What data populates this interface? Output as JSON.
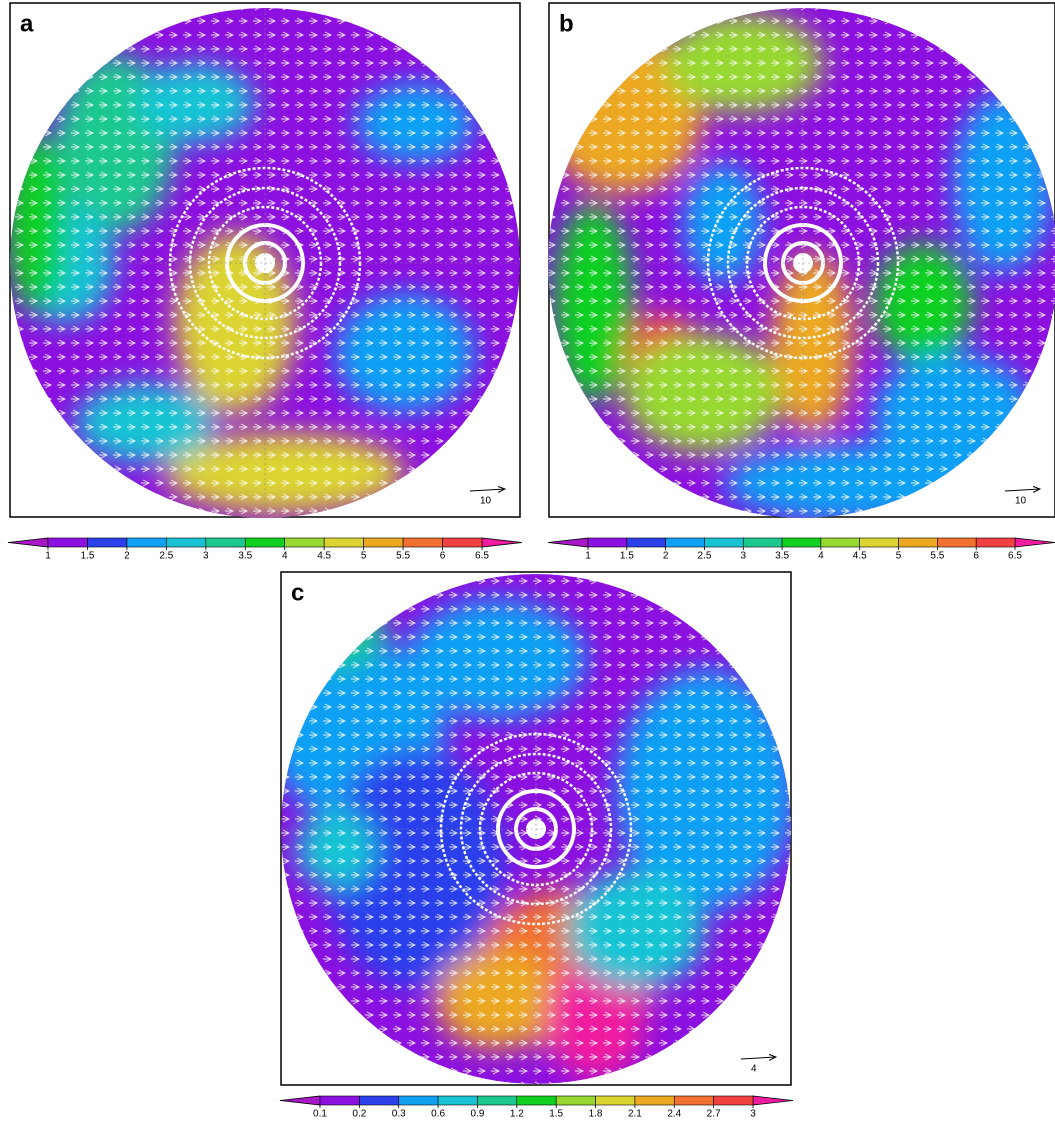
{
  "panels": [
    {
      "label": "a",
      "reference_vector": "10",
      "colorbar": {
        "ticks": [
          1,
          1.5,
          2,
          2.5,
          3,
          3.5,
          4,
          4.5,
          5,
          5.5,
          6,
          6.5
        ],
        "colors": [
          "#a818c8",
          "#8c10e0",
          "#2c40ec",
          "#10a0f4",
          "#18c4d4",
          "#1cc890",
          "#10d020",
          "#98d830",
          "#dcd430",
          "#eca820",
          "#f27030",
          "#f04040",
          "#f01ca0"
        ]
      }
    },
    {
      "label": "b",
      "reference_vector": "10",
      "colorbar": {
        "ticks": [
          1,
          1.5,
          2,
          2.5,
          3,
          3.5,
          4,
          4.5,
          5,
          5.5,
          6,
          6.5
        ],
        "colors": [
          "#a818c8",
          "#8c10e0",
          "#2c40ec",
          "#10a0f4",
          "#18c4d4",
          "#1cc890",
          "#10d020",
          "#98d830",
          "#dcd430",
          "#eca820",
          "#f27030",
          "#f04040",
          "#f01ca0"
        ]
      }
    },
    {
      "label": "c",
      "reference_vector": "4",
      "colorbar": {
        "ticks": [
          0.1,
          0.2,
          0.3,
          0.6,
          0.9,
          1.2,
          1.5,
          1.8,
          2.1,
          2.4,
          2.7,
          3
        ],
        "colors": [
          "#a818c8",
          "#8c10e0",
          "#2c40ec",
          "#10a0f4",
          "#18c4d4",
          "#1cc890",
          "#10d020",
          "#98d830",
          "#dcd430",
          "#eca820",
          "#f27030",
          "#f04040",
          "#f01ca0"
        ]
      }
    }
  ]
}
